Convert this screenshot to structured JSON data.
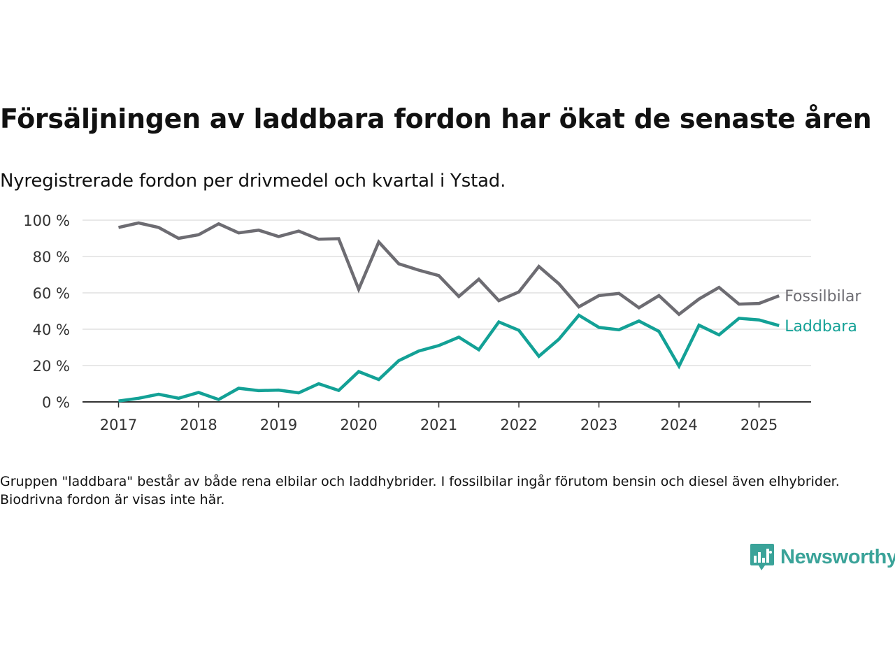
{
  "title": "Försäljningen av laddbara fordon har ökat de senaste åren",
  "subtitle": "Nyregistrerade fordon per drivmedel och kvartal i Ystad.",
  "note": "Gruppen \"laddbara\" består av både rena elbilar och laddhybrider. I fossilbilar ingår förutom bensin och diesel även elhybrider. Biodrivna fordon är visas inte här.",
  "logo": {
    "text": "Newsworthy",
    "icon": "bar-chart-speech-bubble-icon",
    "color": "#3aa399"
  },
  "chart_data": {
    "type": "line",
    "x": [
      2017.0,
      2017.25,
      2017.5,
      2017.75,
      2018.0,
      2018.25,
      2018.5,
      2018.75,
      2019.0,
      2019.25,
      2019.5,
      2019.75,
      2020.0,
      2020.25,
      2020.5,
      2020.75,
      2021.0,
      2021.25,
      2021.5,
      2021.75,
      2022.0,
      2022.25,
      2022.5,
      2022.75,
      2023.0,
      2023.25,
      2023.5,
      2023.75,
      2024.0,
      2024.25,
      2024.5,
      2024.75,
      2025.0,
      2025.25
    ],
    "series": [
      {
        "name": "Fossilbilar",
        "color": "#6d6c72",
        "values": [
          96,
          98.5,
          96,
          90,
          92,
          98,
          93,
          94.5,
          91,
          94,
          89.5,
          89.8,
          62,
          88,
          76,
          72.5,
          69.5,
          58,
          67.5,
          55.7,
          60.5,
          74.5,
          65,
          52.3,
          58.5,
          59.7,
          51.8,
          58.5,
          48.2,
          56.6,
          63,
          53.8,
          54.2,
          58.4
        ]
      },
      {
        "name": "Laddbara",
        "color": "#13a196",
        "values": [
          0.5,
          2,
          4.2,
          2,
          5.2,
          1.3,
          7.5,
          6.2,
          6.5,
          5,
          10,
          6.3,
          16.7,
          12.3,
          22.7,
          28,
          31,
          35.6,
          28.7,
          44,
          39.4,
          25.1,
          34.5,
          47.7,
          41,
          39.7,
          44.5,
          38.8,
          19.7,
          42.2,
          36.9,
          46,
          45.1,
          42
        ]
      }
    ],
    "x_ticks": [
      "2017",
      "2018",
      "2019",
      "2020",
      "2021",
      "2022",
      "2023",
      "2024",
      "2025"
    ],
    "y_ticks": [
      "0 %",
      "20 %",
      "40 %",
      "60 %",
      "80 %",
      "100 %"
    ],
    "xlim": [
      2016.55,
      2025.65
    ],
    "ylim": [
      0,
      100
    ],
    "grid": "horizontal",
    "legend": "inline-right"
  }
}
